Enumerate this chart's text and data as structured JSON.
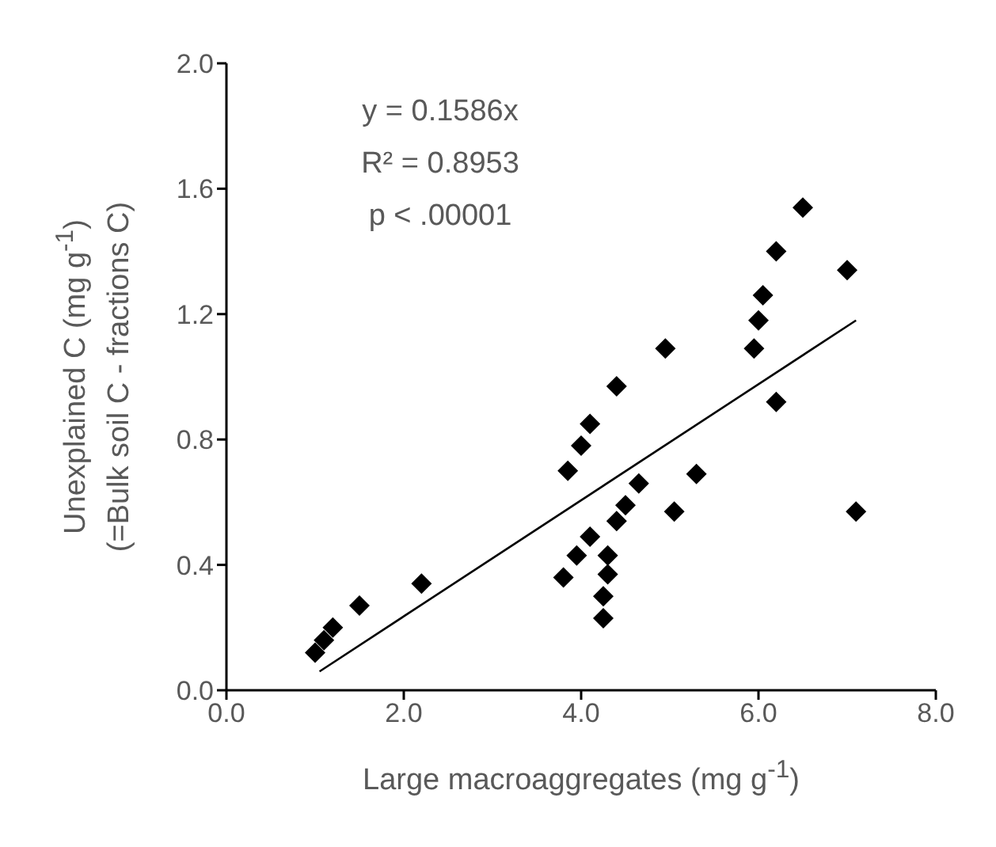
{
  "chart_data": {
    "type": "scatter",
    "xlabel": "Large macroaggregates (mg g$^{-1}$)",
    "ylabel": "Unexplained C (mg g$^{-1}$)\n(=Bulk soil C - fractions C)",
    "annotations": [
      "y = 0.1586x",
      "R² = 0.8953",
      "p < .00001"
    ],
    "xlim": [
      0,
      8
    ],
    "xticks": [
      {
        "value": 0,
        "label": "0.0"
      },
      {
        "value": 2,
        "label": "2.0"
      },
      {
        "value": 4,
        "label": "4.0"
      },
      {
        "value": 6,
        "label": "6.0"
      },
      {
        "value": 8,
        "label": "8.0"
      }
    ],
    "ylim": [
      0,
      2
    ],
    "yticks": [
      {
        "value": 0,
        "label": "0.0"
      },
      {
        "value": 0.4,
        "label": "0.4"
      },
      {
        "value": 0.8,
        "label": "0.8"
      },
      {
        "value": 1.2,
        "label": "1.2"
      },
      {
        "value": 1.6,
        "label": "1.6"
      },
      {
        "value": 2,
        "label": "2.0"
      }
    ],
    "grid": false,
    "legend": false,
    "series": [
      {
        "marker": "diamond",
        "color": "#000000",
        "x": [
          1.0,
          1.1,
          1.2,
          1.5,
          2.2,
          3.8,
          3.85,
          3.95,
          4.0,
          4.1,
          4.1,
          4.25,
          4.25,
          4.3,
          4.3,
          4.4,
          4.4,
          4.5,
          4.65,
          4.95,
          5.05,
          5.3,
          5.95,
          6.0,
          6.05,
          6.2,
          6.2,
          6.5,
          7.0,
          7.1
        ],
        "values": [
          0.12,
          0.16,
          0.2,
          0.27,
          0.34,
          0.36,
          0.7,
          0.43,
          0.78,
          0.85,
          0.49,
          0.3,
          0.23,
          0.37,
          0.43,
          0.97,
          0.54,
          0.59,
          0.66,
          1.09,
          0.57,
          0.69,
          1.09,
          1.18,
          1.26,
          1.4,
          0.92,
          1.54,
          1.34,
          0.57
        ]
      },
      {
        "type": "line",
        "marker": "none",
        "color": "#000000",
        "x": [
          1.05,
          7.1
        ],
        "values": [
          0.06,
          1.18
        ]
      }
    ]
  }
}
